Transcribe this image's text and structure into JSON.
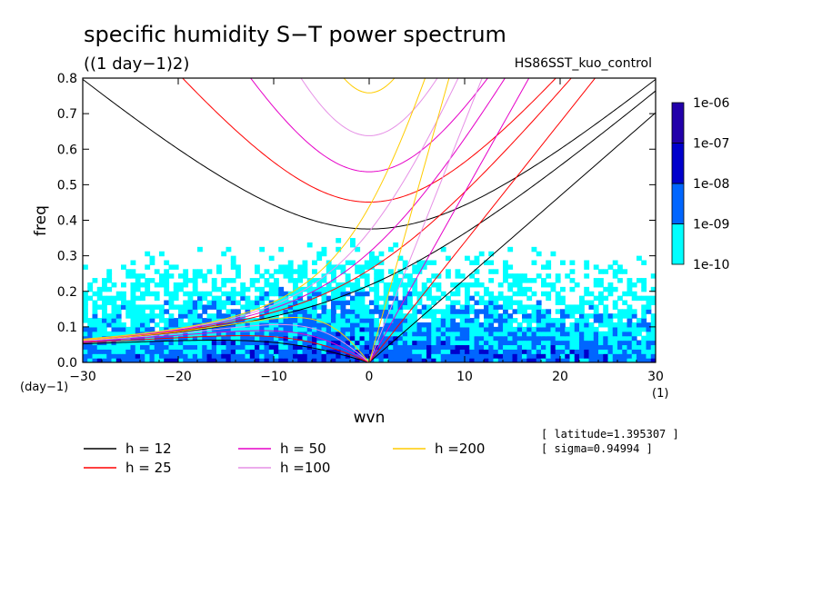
{
  "chart_data": {
    "type": "heatmap",
    "title": "specific humidity S−T power spectrum",
    "subtitle": "((1 day−1)2)",
    "experiment": "HS86SST_kuo_control",
    "xlabel": "wvn",
    "ylabel": "freq",
    "x_unit": "(1)",
    "y_unit": "(day−1)",
    "xlim": [
      -30,
      30
    ],
    "ylim": [
      0,
      0.8
    ],
    "x_ticks": [
      -30,
      -20,
      -10,
      0,
      10,
      20,
      30
    ],
    "x_tick_labels": [
      "−30",
      "−20",
      "−10",
      "0",
      "10",
      "20",
      "30"
    ],
    "y_ticks": [
      0,
      0.1,
      0.2,
      0.3,
      0.4,
      0.5,
      0.6,
      0.7,
      0.8
    ],
    "y_tick_labels": [
      "0.0",
      "0.1",
      "0.2",
      "0.3",
      "0.4",
      "0.5",
      "0.6",
      "0.7",
      "0.8"
    ],
    "color_levels": [
      "1e-10",
      "1e-09",
      "1e-08",
      "1e-07",
      "1e-06"
    ],
    "level_colors": [
      "#00FFFF",
      "#0066FF",
      "#0000CC",
      "#2200AA",
      "#5500CC"
    ],
    "dispersion_curves": [
      {
        "label": "h = 12",
        "h": 12,
        "color": "#000000"
      },
      {
        "label": "h = 25",
        "h": 25,
        "color": "#FF0000"
      },
      {
        "label": "h = 50",
        "h": 50,
        "color": "#E600C8"
      },
      {
        "label": "h =100",
        "h": 100,
        "color": "#E690E6"
      },
      {
        "label": "h =200",
        "h": 200,
        "color": "#FFCC00"
      }
    ],
    "annotations": [
      "[ latitude=1.395307 ]",
      "[ sigma=0.94994 ]"
    ],
    "grid": false,
    "legend_placement": "bottom-left"
  }
}
